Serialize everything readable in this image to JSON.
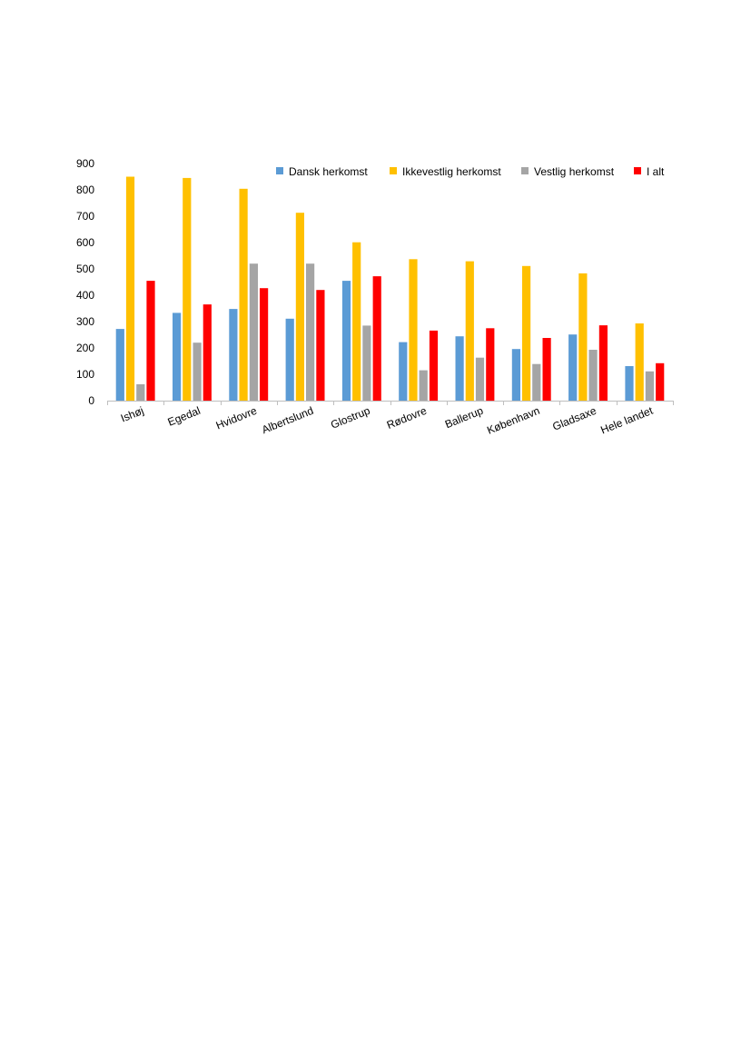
{
  "chart_data": {
    "type": "bar",
    "categories": [
      "Ishøj",
      "Egedal",
      "Hvidovre",
      "Albertslund",
      "Glostrup",
      "Rødovre",
      "Ballerup",
      "København",
      "Gladsaxe",
      "Hele landet"
    ],
    "series": [
      {
        "name": "Dansk herkomst",
        "color": "#5B9BD5",
        "values": [
          272,
          333,
          348,
          311,
          455,
          222,
          244,
          196,
          251,
          131
        ]
      },
      {
        "name": "Ikkevestlig herkomst",
        "color": "#FFC000",
        "values": [
          850,
          845,
          804,
          713,
          601,
          537,
          529,
          511,
          483,
          293
        ]
      },
      {
        "name": "Vestlig herkomst",
        "color": "#A5A5A5",
        "values": [
          62,
          220,
          520,
          520,
          285,
          115,
          163,
          139,
          193,
          111
        ]
      },
      {
        "name": "I alt",
        "color": "#FF0000",
        "values": [
          455,
          365,
          427,
          420,
          472,
          266,
          275,
          238,
          286,
          142
        ]
      }
    ],
    "y_ticks": [
      "0",
      "100",
      "200",
      "300",
      "400",
      "500",
      "600",
      "700",
      "800",
      "900"
    ],
    "ylim": [
      0,
      900
    ],
    "grid": false,
    "legend_position": "top-right",
    "title": "",
    "xlabel": "",
    "ylabel": ""
  }
}
